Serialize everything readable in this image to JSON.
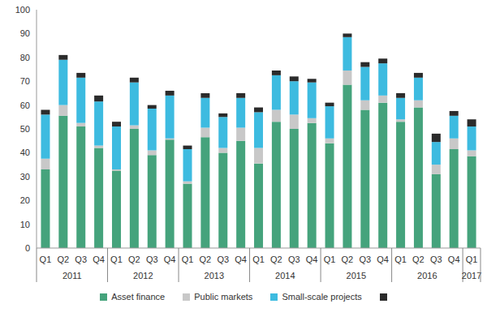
{
  "chart_data": {
    "type": "bar",
    "stacked": true,
    "grid": false,
    "legend": "bottom",
    "categories": [
      "Q1",
      "Q2",
      "Q3",
      "Q4",
      "Q1",
      "Q2",
      "Q3",
      "Q4",
      "Q1",
      "Q2",
      "Q3",
      "Q4",
      "Q1",
      "Q2",
      "Q3",
      "Q4",
      "Q1",
      "Q2",
      "Q3",
      "Q4",
      "Q1",
      "Q2",
      "Q3",
      "Q4",
      "Q1"
    ],
    "groups": [
      "2011",
      "2012",
      "2013",
      "2014",
      "2015",
      "2016",
      "2017"
    ],
    "ylim": [
      0,
      100
    ],
    "yticks": [
      0,
      10,
      20,
      30,
      40,
      50,
      60,
      70,
      80,
      90,
      100
    ],
    "series": [
      {
        "name": "Asset finance",
        "color": "#45a37c",
        "values": [
          33,
          55.5,
          51,
          42,
          32.5,
          50,
          39,
          45.5,
          27,
          46.5,
          40,
          45,
          35.5,
          53,
          50,
          52.5,
          44,
          68.5,
          58,
          61,
          53,
          59,
          31,
          41.5,
          38.5
        ]
      },
      {
        "name": "Public markets",
        "color": "#c8c8c8",
        "values": [
          4.5,
          4.5,
          1.5,
          1,
          0.5,
          1.5,
          2,
          0.5,
          1,
          4,
          2,
          5.5,
          6.5,
          5,
          6,
          2,
          2,
          6,
          4,
          3,
          1,
          3,
          4,
          4.5,
          2.5
        ]
      },
      {
        "name": "Small-scale projects",
        "color": "#3dbbe0",
        "values": [
          18.5,
          19,
          19,
          18.5,
          18,
          18,
          17.5,
          18,
          13.5,
          12.5,
          13,
          12.5,
          15,
          14.5,
          14,
          15,
          13.5,
          14,
          14,
          13.5,
          9,
          9.5,
          9.5,
          9.5,
          10
        ]
      },
      {
        "color": "#2b2b2b",
        "values": [
          2,
          2,
          2,
          2.5,
          2,
          2,
          1.5,
          2,
          1.5,
          2,
          1.5,
          2,
          2,
          2,
          2,
          1.5,
          1.5,
          1.5,
          2,
          2,
          2,
          2,
          3.5,
          2,
          3
        ]
      }
    ]
  }
}
